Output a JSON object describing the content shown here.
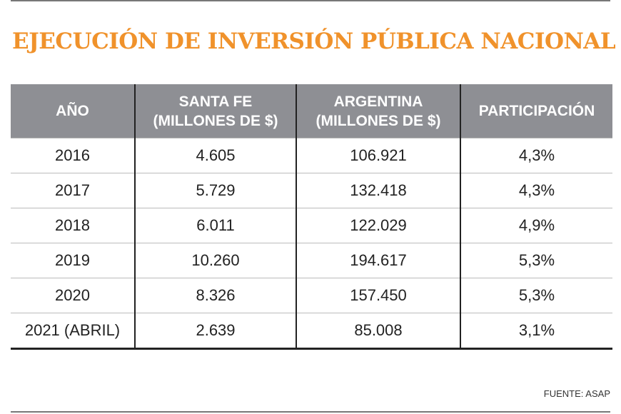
{
  "header": {
    "title": "EJECUCIÓN DE INVERSIÓN PÚBLICA NACIONAL"
  },
  "table": {
    "columns": [
      [
        "AÑO"
      ],
      [
        "SANTA FE",
        "(MILLONES DE $)"
      ],
      [
        "ARGENTINA",
        "(MILLONES DE $)"
      ],
      [
        "PARTICIPACIÓN"
      ]
    ],
    "rows": [
      [
        "2016",
        "4.605",
        "106.921",
        "4,3%"
      ],
      [
        "2017",
        "5.729",
        "132.418",
        "4,3%"
      ],
      [
        "2018",
        "6.011",
        "122.029",
        "4,9%"
      ],
      [
        "2019",
        "10.260",
        "194.617",
        "5,3%"
      ],
      [
        "2020",
        "8.326",
        "157.450",
        "5,3%"
      ],
      [
        "2021 (ABRIL)",
        "2.639",
        "85.008",
        "3,1%"
      ]
    ]
  },
  "footer": {
    "source": "FUENTE: ASAP"
  }
}
